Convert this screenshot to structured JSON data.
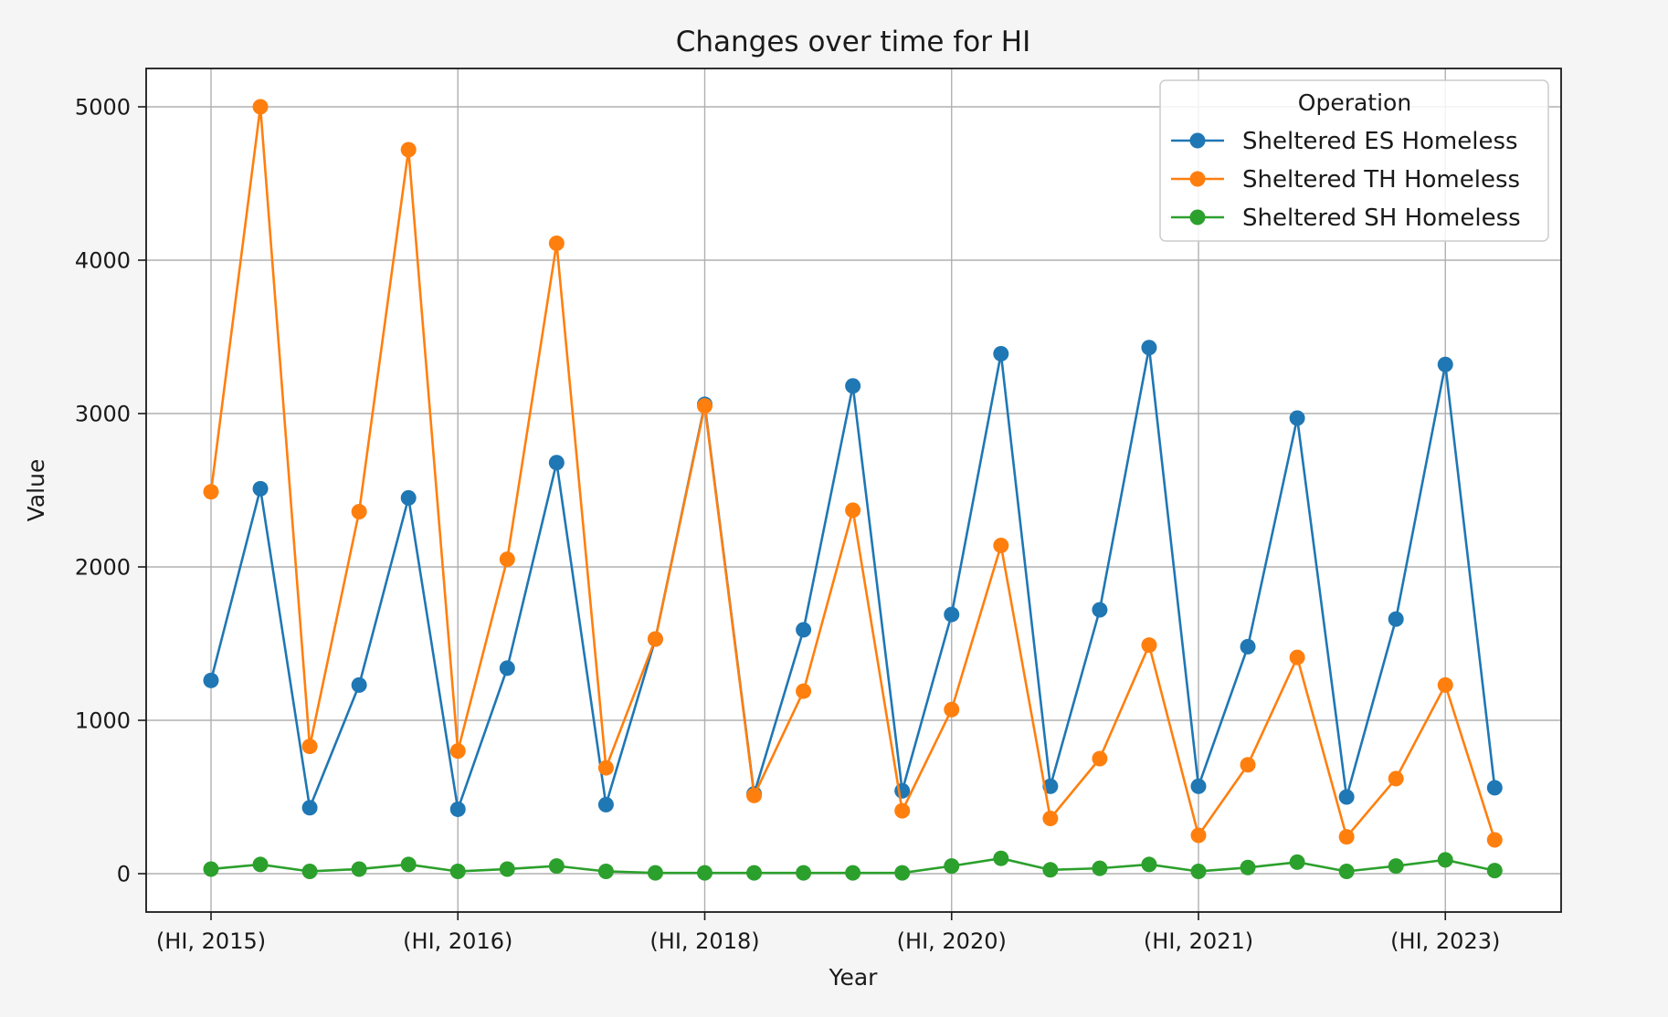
{
  "chart_data": {
    "type": "line",
    "title": "Changes over time for HI",
    "xlabel": "Year",
    "ylabel": "Value",
    "ylim": [
      -250,
      5250
    ],
    "yticks": [
      0,
      1000,
      2000,
      3000,
      4000,
      5000
    ],
    "xtick_labels": [
      "(HI, 2015)",
      "(HI, 2016)",
      "(HI, 2018)",
      "(HI, 2020)",
      "(HI, 2021)",
      "(HI, 2023)"
    ],
    "xtick_positions": [
      0,
      5,
      10,
      15,
      20,
      25
    ],
    "grid": true,
    "legend": {
      "title": "Operation",
      "placement": "top-right"
    },
    "series": [
      {
        "name": "Sheltered ES Homeless",
        "color": "#1f77b4",
        "values": [
          1260,
          2510,
          430,
          1230,
          2450,
          420,
          1340,
          2680,
          450,
          1530,
          3060,
          520,
          1590,
          3180,
          540,
          1690,
          3390,
          570,
          1720,
          3430,
          570,
          1480,
          2970,
          500,
          1660,
          3320,
          560
        ]
      },
      {
        "name": "Sheltered TH Homeless",
        "color": "#ff7f0e",
        "values": [
          2490,
          5000,
          830,
          2360,
          4720,
          800,
          2050,
          4110,
          690,
          1530,
          3050,
          510,
          1190,
          2370,
          410,
          1070,
          2140,
          360,
          750,
          1490,
          250,
          710,
          1410,
          240,
          620,
          1230,
          220
        ]
      },
      {
        "name": "Sheltered SH Homeless",
        "color": "#2ca02c",
        "values": [
          30,
          60,
          15,
          30,
          60,
          15,
          30,
          50,
          15,
          5,
          5,
          5,
          5,
          5,
          5,
          50,
          100,
          25,
          35,
          60,
          15,
          40,
          75,
          15,
          50,
          90,
          20
        ]
      }
    ]
  }
}
